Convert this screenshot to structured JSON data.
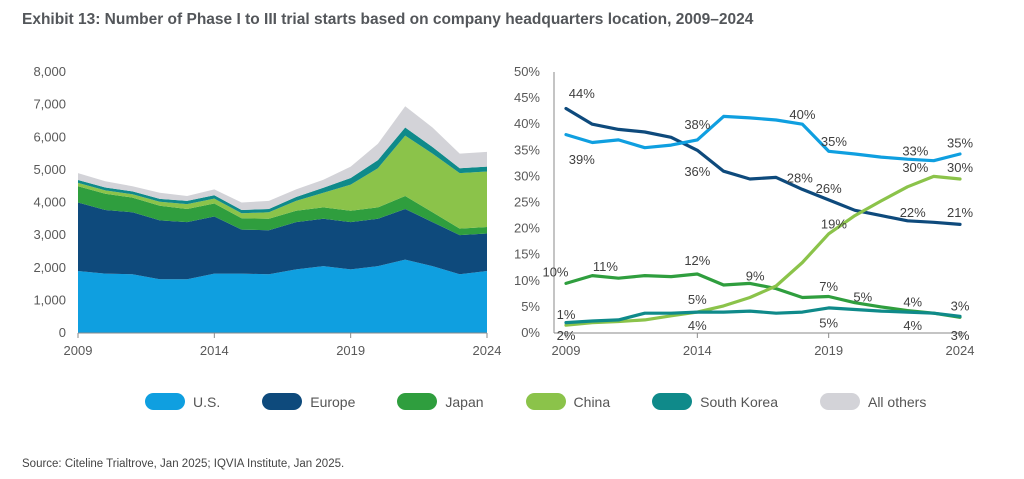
{
  "title": "Exhibit 13: Number of Phase I to III trial starts based on company headquarters location, 2009–2024",
  "source": "Source: Citeline Trialtrove, Jan 2025; IQVIA Institute, Jan 2025.",
  "colors": {
    "U.S.": "#0f9fe0",
    "Europe": "#0e4a7c",
    "Japan": "#2f9e3e",
    "China": "#8bc34a",
    "South Korea": "#0f8a8a",
    "All others": "#d3d3d8"
  },
  "legend": [
    {
      "label": "U.S.",
      "color": "#0f9fe0"
    },
    {
      "label": "Europe",
      "color": "#0e4a7c"
    },
    {
      "label": "Japan",
      "color": "#2f9e3e"
    },
    {
      "label": "China",
      "color": "#8bc34a"
    },
    {
      "label": "South Korea",
      "color": "#0f8a8a"
    },
    {
      "label": "All others",
      "color": "#d3d3d8"
    }
  ],
  "chart_data": [
    {
      "type": "area",
      "stacked": true,
      "x": [
        2009,
        2010,
        2011,
        2012,
        2013,
        2014,
        2015,
        2016,
        2017,
        2018,
        2019,
        2020,
        2021,
        2022,
        2023,
        2024
      ],
      "xticks": [
        "2009",
        "2014",
        "2019",
        "2024"
      ],
      "yticks": [
        "0",
        "1,000",
        "2,000",
        "3,000",
        "4,000",
        "5,000",
        "6,000",
        "7,000",
        "8,000"
      ],
      "ylim": [
        0,
        8000
      ],
      "series": [
        {
          "name": "U.S.",
          "values": [
            1900,
            1820,
            1800,
            1650,
            1650,
            1820,
            1820,
            1800,
            1950,
            2050,
            1950,
            2050,
            2250,
            2050,
            1800,
            1900
          ]
        },
        {
          "name": "Europe",
          "values": [
            2100,
            1950,
            1900,
            1800,
            1750,
            1750,
            1350,
            1350,
            1450,
            1450,
            1450,
            1450,
            1550,
            1350,
            1200,
            1150
          ]
        },
        {
          "name": "Japan",
          "values": [
            500,
            500,
            450,
            450,
            400,
            400,
            350,
            350,
            350,
            350,
            350,
            350,
            400,
            300,
            200,
            200
          ]
        },
        {
          "name": "China",
          "values": [
            100,
            100,
            100,
            120,
            150,
            150,
            150,
            200,
            300,
            450,
            800,
            1200,
            1850,
            1800,
            1700,
            1700
          ]
        },
        {
          "name": "South Korea",
          "values": [
            90,
            90,
            90,
            90,
            100,
            100,
            100,
            100,
            120,
            150,
            200,
            250,
            250,
            200,
            150,
            150
          ]
        },
        {
          "name": "All others",
          "values": [
            210,
            190,
            160,
            190,
            150,
            180,
            230,
            250,
            230,
            250,
            350,
            500,
            650,
            600,
            450,
            450
          ]
        }
      ]
    },
    {
      "type": "line",
      "x": [
        2009,
        2010,
        2011,
        2012,
        2013,
        2014,
        2015,
        2016,
        2017,
        2018,
        2019,
        2020,
        2021,
        2022,
        2023,
        2024
      ],
      "xticks": [
        "2009",
        "2014",
        "2019",
        "2024"
      ],
      "yticks": [
        "0%",
        "5%",
        "10%",
        "15%",
        "20%",
        "25%",
        "30%",
        "35%",
        "40%",
        "45%",
        "50%"
      ],
      "ylim": [
        0,
        50
      ],
      "series": [
        {
          "name": "Europe",
          "values": [
            43,
            40,
            39,
            38.5,
            37.5,
            35,
            31,
            29.5,
            29.8,
            27.5,
            25.5,
            23.5,
            22.5,
            21.5,
            21.2,
            20.8
          ]
        },
        {
          "name": "U.S.",
          "values": [
            38,
            36.5,
            37,
            35.5,
            36,
            37,
            41.5,
            41.2,
            40.8,
            40,
            34.8,
            34.3,
            33.7,
            33.3,
            33,
            34.3
          ]
        },
        {
          "name": "Japan",
          "values": [
            9.5,
            11,
            10.5,
            11,
            10.8,
            11.3,
            9.2,
            9.5,
            8.5,
            6.8,
            7,
            5.8,
            5,
            4.3,
            3.8,
            3
          ]
        },
        {
          "name": "China",
          "values": [
            1.5,
            2,
            2.2,
            2.5,
            3.3,
            4,
            5.2,
            6.8,
            9,
            13.5,
            19,
            22.5,
            25.3,
            28,
            30,
            29.5
          ]
        },
        {
          "name": "South Korea",
          "values": [
            2,
            2.3,
            2.5,
            3.8,
            3.8,
            4,
            4,
            4.2,
            3.8,
            4,
            4.8,
            4.5,
            4.2,
            4,
            3.8,
            3.2
          ]
        }
      ],
      "annotations": [
        "44%",
        "39%",
        "38%",
        "36%",
        "40%",
        "35%",
        "28%",
        "26%",
        "33%",
        "35%",
        "30%",
        "30%",
        "22%",
        "21%",
        "19%",
        "10%",
        "11%",
        "12%",
        "9%",
        "7%",
        "5%",
        "4%",
        "3%",
        "1%",
        "2%",
        "5%",
        "4%",
        "5%",
        "4%",
        "3%"
      ]
    }
  ]
}
